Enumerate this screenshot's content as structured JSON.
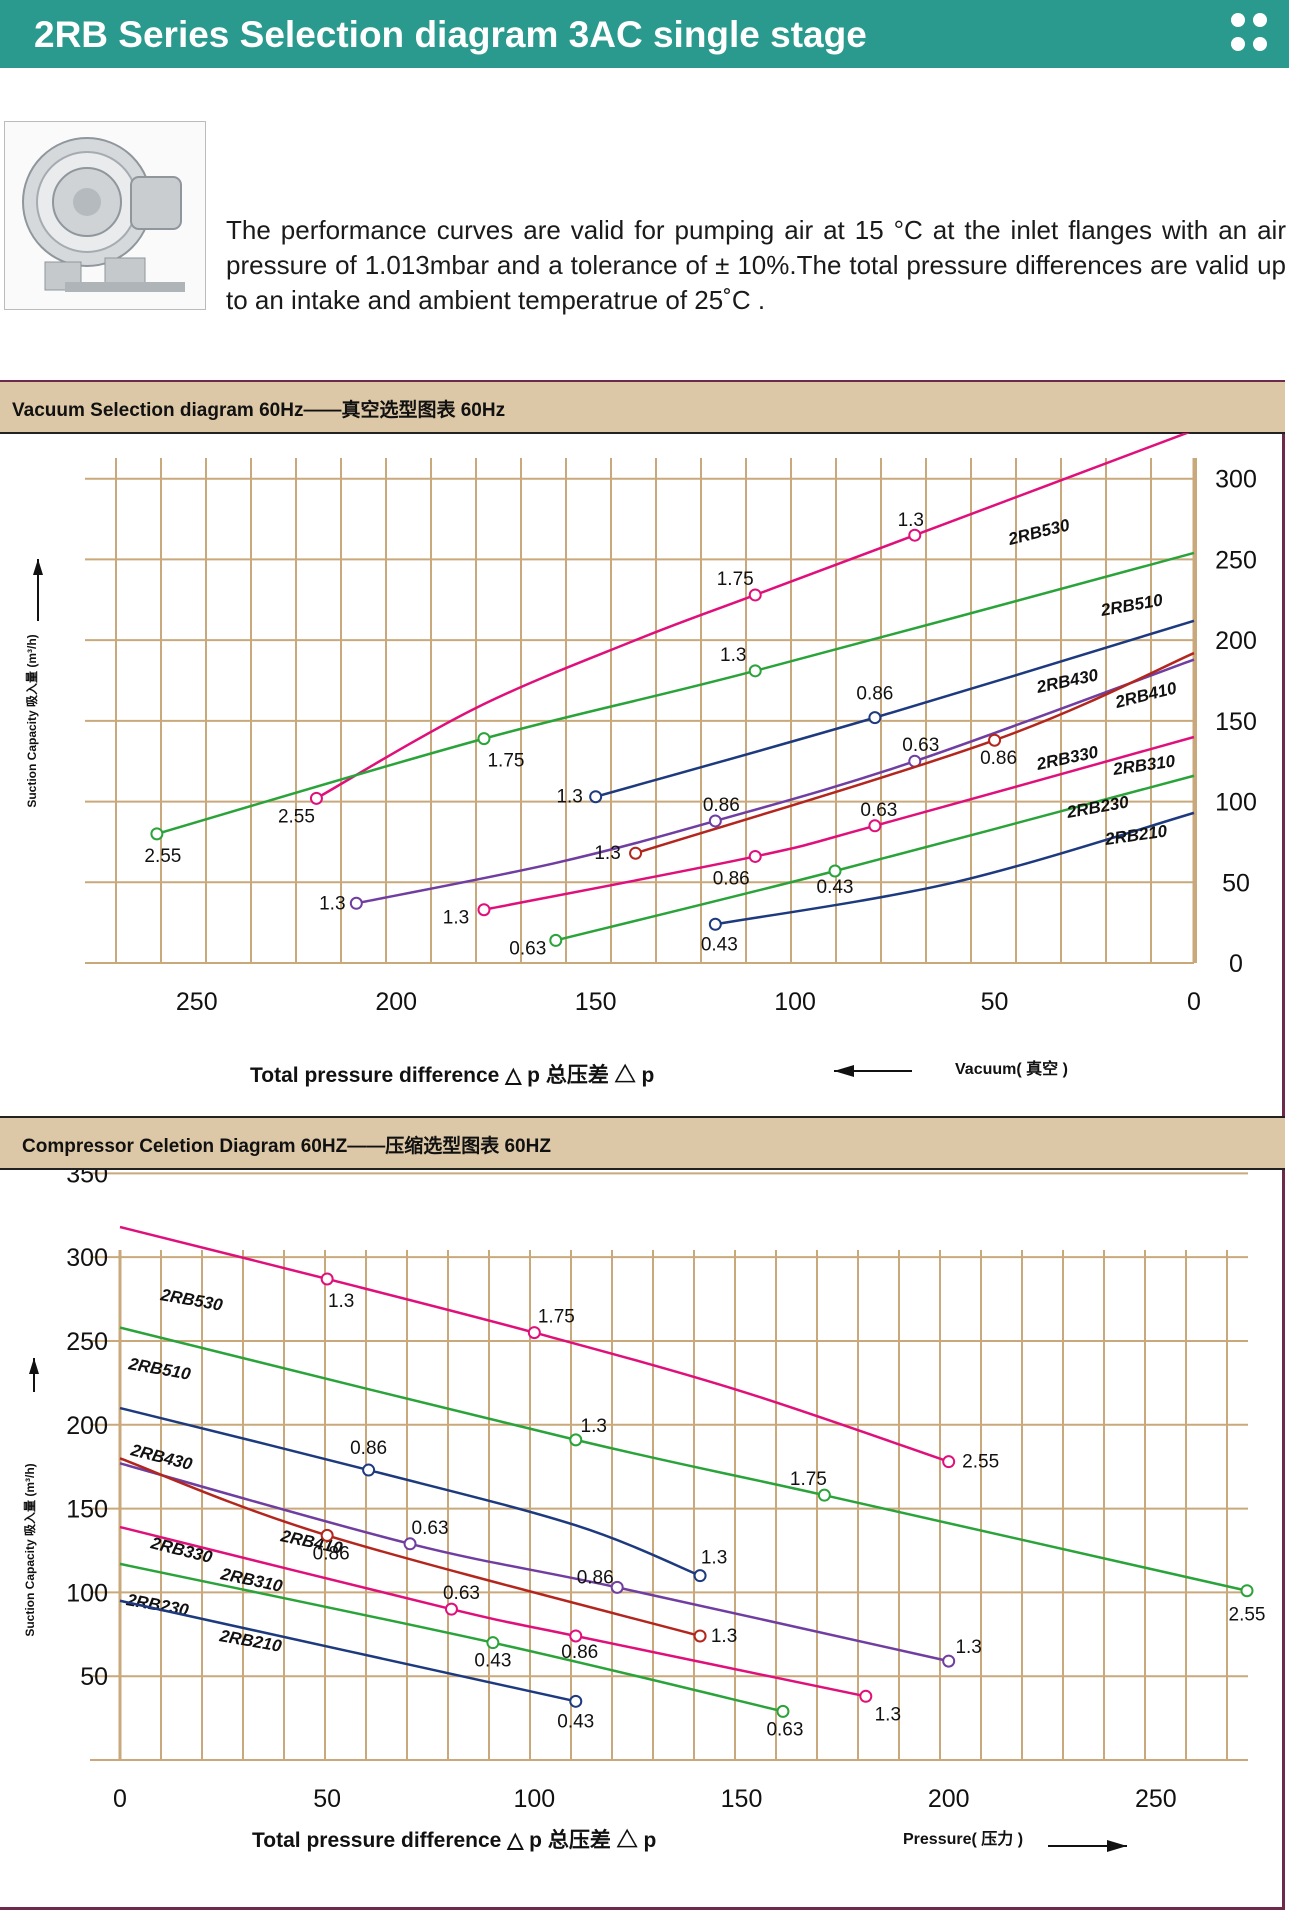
{
  "header": {
    "title": "2RB Series Selection diagram 3AC single stage"
  },
  "description": "The performance curves are valid for pumping air at 15 °C at the inlet flanges with an air pressure of 1.013mbar and a tolerance of ± 10%.The total pressure differences are valid up to an intake and ambient temperatrue of 25˚C .",
  "colors": {
    "header": "#2b9a8e",
    "band": "#dcc7a6",
    "grid": "#c9a97b"
  },
  "vacuum": {
    "band_title": "Vacuum Selection diagram 60Hz——真空选型图表 60Hz"
  },
  "compressor": {
    "band_title": "Compressor Celetion Diagram 60HZ——压缩选型图表 60HZ"
  },
  "chart_data": [
    {
      "type": "line",
      "title": "Vacuum Selection diagram 60Hz——真空选型图表 60Hz",
      "xlabel": "Total pressure difference △ p 总压差 △ p",
      "ylabel": "Suction Capacity 吸入量 (m³/h)",
      "direction_label": "Vacuum( 真空 )",
      "x_reversed": true,
      "xlim": [
        270,
        0
      ],
      "ylim": [
        0,
        350
      ],
      "xticks": [
        250,
        200,
        150,
        100,
        50,
        0
      ],
      "yticks": [
        350,
        300,
        250,
        200,
        150,
        100,
        50,
        0
      ],
      "grid": true,
      "series": [
        {
          "name": "2RB530",
          "color": "#e0107a",
          "x": [
            220,
            180,
            140,
            110,
            70,
            0
          ],
          "y": [
            102,
            158,
            200,
            228,
            265,
            330
          ],
          "markers": [
            {
              "x": 220,
              "y": 102,
              "label": "2.55"
            },
            {
              "x": 110,
              "y": 228,
              "label": "1.75"
            },
            {
              "x": 70,
              "y": 265,
              "label": "1.3"
            }
          ]
        },
        {
          "name": "2RB510",
          "color": "#2aa33a",
          "x": [
            260,
            178,
            110,
            0
          ],
          "y": [
            80,
            139,
            181,
            254
          ],
          "markers": [
            {
              "x": 260,
              "y": 80,
              "label": "2.55"
            },
            {
              "x": 178,
              "y": 139,
              "label": "1.75"
            },
            {
              "x": 110,
              "y": 181,
              "label": "1.3"
            }
          ]
        },
        {
          "name": "2RB430",
          "color": "#1d3a7f",
          "x": [
            150,
            80,
            0
          ],
          "y": [
            103,
            152,
            212
          ],
          "markers": [
            {
              "x": 150,
              "y": 103,
              "label": "1.3"
            },
            {
              "x": 80,
              "y": 152,
              "label": "0.86"
            }
          ]
        },
        {
          "name": "2RB410",
          "color": "#6f3ea0",
          "x": [
            210,
            160,
            120,
            70,
            0
          ],
          "y": [
            37,
            62,
            88,
            125,
            188
          ],
          "markers": [
            {
              "x": 210,
              "y": 37,
              "label": "1.3"
            },
            {
              "x": 120,
              "y": 88,
              "label": "0.86"
            },
            {
              "x": 70,
              "y": 125,
              "label": "0.63"
            }
          ]
        },
        {
          "name": "2RB330",
          "color": "#b3261e",
          "x": [
            140,
            50,
            0
          ],
          "y": [
            68,
            138,
            192
          ],
          "markers": [
            {
              "x": 140,
              "y": 68,
              "label": "1.3"
            },
            {
              "x": 50,
              "y": 138,
              "label": "0.86"
            }
          ]
        },
        {
          "name": "2RB310",
          "color": "#e0107a",
          "x": [
            178,
            110,
            80,
            0
          ],
          "y": [
            33,
            66,
            85,
            140
          ],
          "markers": [
            {
              "x": 178,
              "y": 33,
              "label": "1.3"
            },
            {
              "x": 110,
              "y": 66,
              "label": "0.86"
            },
            {
              "x": 80,
              "y": 85,
              "label": "0.63"
            }
          ]
        },
        {
          "name": "2RB230",
          "color": "#2aa33a",
          "x": [
            160,
            90,
            0
          ],
          "y": [
            14,
            57,
            116
          ],
          "markers": [
            {
              "x": 160,
              "y": 14,
              "label": "0.63"
            },
            {
              "x": 90,
              "y": 57,
              "label": "0.43"
            }
          ]
        },
        {
          "name": "2RB210",
          "color": "#1d3a7f",
          "x": [
            120,
            60,
            0
          ],
          "y": [
            24,
            50,
            93
          ],
          "markers": [
            {
              "x": 120,
              "y": 24,
              "label": "0.43"
            }
          ]
        }
      ]
    },
    {
      "type": "line",
      "title": "Compressor Celetion Diagram 60HZ——压缩选型图表 60HZ",
      "xlabel": "Total pressure difference △ p 总压差 △ p",
      "ylabel": "Suction Capacity 吸入量 (m³/h)",
      "direction_label": "Pressure( 压力 )",
      "xlim": [
        0,
        272
      ],
      "ylim": [
        0,
        355
      ],
      "xticks": [
        0,
        50,
        100,
        150,
        200,
        250
      ],
      "yticks": [
        350,
        300,
        250,
        200,
        150,
        100,
        50
      ],
      "grid": true,
      "series": [
        {
          "name": "2RB530",
          "color": "#e0107a",
          "x": [
            0,
            50,
            100,
            150,
            200
          ],
          "y": [
            318,
            287,
            255,
            220,
            178
          ],
          "markers": [
            {
              "x": 50,
              "y": 287,
              "label": "1.3"
            },
            {
              "x": 100,
              "y": 255,
              "label": "1.75"
            },
            {
              "x": 200,
              "y": 178,
              "label": "2.55"
            }
          ]
        },
        {
          "name": "2RB510",
          "color": "#2aa33a",
          "x": [
            0,
            110,
            170,
            272
          ],
          "y": [
            258,
            191,
            158,
            101
          ],
          "markers": [
            {
              "x": 110,
              "y": 191,
              "label": "1.3"
            },
            {
              "x": 170,
              "y": 158,
              "label": "1.75"
            },
            {
              "x": 272,
              "y": 101,
              "label": "2.55"
            }
          ]
        },
        {
          "name": "2RB430",
          "color": "#1d3a7f",
          "x": [
            0,
            60,
            110,
            140
          ],
          "y": [
            210,
            173,
            140,
            110
          ],
          "markers": [
            {
              "x": 60,
              "y": 173,
              "label": "0.86"
            },
            {
              "x": 140,
              "y": 110,
              "label": "1.3"
            }
          ]
        },
        {
          "name": "2RB410",
          "color": "#6f3ea0",
          "x": [
            0,
            70,
            120,
            200
          ],
          "y": [
            177,
            129,
            103,
            59
          ],
          "markers": [
            {
              "x": 70,
              "y": 129,
              "label": "0.63"
            },
            {
              "x": 120,
              "y": 103,
              "label": "0.86"
            },
            {
              "x": 200,
              "y": 59,
              "label": "1.3"
            }
          ]
        },
        {
          "name": "2RB330",
          "color": "#b3261e",
          "x": [
            0,
            50,
            140
          ],
          "y": [
            180,
            134,
            74
          ],
          "markers": [
            {
              "x": 50,
              "y": 134,
              "label": "0.86"
            },
            {
              "x": 140,
              "y": 74,
              "label": "1.3"
            }
          ]
        },
        {
          "name": "2RB310",
          "color": "#e0107a",
          "x": [
            0,
            80,
            110,
            180
          ],
          "y": [
            139,
            90,
            74,
            38
          ],
          "markers": [
            {
              "x": 80,
              "y": 90,
              "label": "0.63"
            },
            {
              "x": 110,
              "y": 74,
              "label": "0.86"
            },
            {
              "x": 180,
              "y": 38,
              "label": "1.3"
            }
          ]
        },
        {
          "name": "2RB230",
          "color": "#2aa33a",
          "x": [
            0,
            90,
            160
          ],
          "y": [
            117,
            70,
            29
          ],
          "markers": [
            {
              "x": 90,
              "y": 70,
              "label": "0.43"
            },
            {
              "x": 160,
              "y": 29,
              "label": "0.63"
            }
          ]
        },
        {
          "name": "2RB210",
          "color": "#1d3a7f",
          "x": [
            0,
            110
          ],
          "y": [
            95,
            35
          ],
          "markers": [
            {
              "x": 110,
              "y": 35,
              "label": "0.43"
            }
          ]
        }
      ]
    }
  ]
}
